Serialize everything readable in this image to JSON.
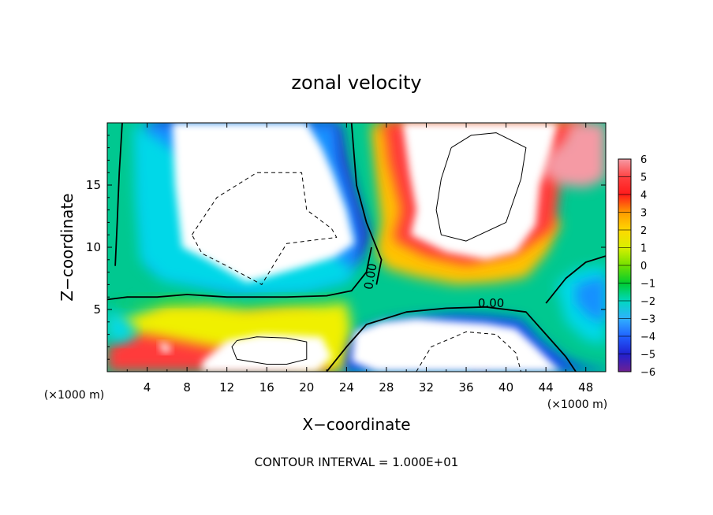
{
  "chart_data": {
    "type": "heatmap",
    "title": "zonal velocity",
    "xlabel": "X−coordinate",
    "ylabel": "Z−coordinate",
    "x_unit": "(×1000 m)",
    "x_unit_right": "(×1000 m)",
    "xlim": [
      0,
      50
    ],
    "ylim": [
      0,
      20
    ],
    "x_ticks": [
      4,
      8,
      12,
      16,
      20,
      24,
      28,
      32,
      36,
      40,
      44,
      48
    ],
    "y_ticks": [
      5,
      10,
      15
    ],
    "footer": "CONTOUR INTERVAL = 1.000E+01",
    "colorbar": {
      "levels": [
        "6",
        "5",
        "4",
        "3",
        "2",
        "1",
        "0",
        "−1",
        "−2",
        "−3",
        "−4",
        "−5",
        "−6"
      ],
      "colors": [
        "#f59aa4",
        "#ff4040",
        "#ff1a1a",
        "#ff9a00",
        "#ffd800",
        "#d8f000",
        "#70e000",
        "#00cc30",
        "#00d8c0",
        "#30b0ff",
        "#2060ff",
        "#2020d0",
        "#702090"
      ],
      "fill_colors": [
        "#f59aa4",
        "#ff3a3a",
        "#ff8a00",
        "#ffc400",
        "#f0f000",
        "#a8e800",
        "#30d020",
        "#00c890",
        "#00d8e8",
        "#1890ff",
        "#1040f0",
        "#2818c0",
        "#6a1aa0"
      ]
    },
    "contour_labels": [
      {
        "text": "0.00",
        "x": 26.8,
        "y": 7.6
      },
      {
        "text": "0.00",
        "x": 38.5,
        "y": 5.2
      }
    ],
    "zero_contour_sections": [
      [
        [
          1.5,
          20
        ],
        [
          1.2,
          16
        ],
        [
          1.0,
          12
        ],
        [
          0.8,
          8.5
        ]
      ],
      [
        [
          0,
          5.8
        ],
        [
          2,
          6.0
        ],
        [
          5,
          6.0
        ],
        [
          8,
          6.2
        ],
        [
          12,
          6.0
        ],
        [
          18,
          6.0
        ],
        [
          22,
          6.1
        ],
        [
          24.5,
          6.5
        ],
        [
          26,
          8
        ],
        [
          26.5,
          10
        ]
      ],
      [
        [
          22,
          0
        ],
        [
          24,
          2
        ],
        [
          26,
          3.8
        ],
        [
          30,
          4.8
        ],
        [
          34,
          5.1
        ],
        [
          38,
          5.2
        ],
        [
          42,
          4.8
        ],
        [
          44,
          3.0
        ],
        [
          46,
          1.2
        ],
        [
          47,
          0
        ]
      ],
      [
        [
          24.5,
          20
        ],
        [
          25,
          15
        ],
        [
          26,
          12
        ],
        [
          27.5,
          9
        ],
        [
          27,
          7
        ]
      ],
      [
        [
          44,
          5.5
        ],
        [
          46,
          7.5
        ],
        [
          48,
          8.8
        ],
        [
          50,
          9.3
        ]
      ]
    ],
    "positive_contour_sections": [
      [
        [
          34.5,
          18
        ],
        [
          36.5,
          19
        ],
        [
          39,
          19.2
        ],
        [
          42,
          18
        ],
        [
          41.5,
          15.5
        ],
        [
          40,
          12
        ],
        [
          36,
          10.5
        ],
        [
          33.5,
          11
        ],
        [
          33,
          13
        ],
        [
          33.5,
          15.5
        ],
        [
          34.5,
          18
        ]
      ],
      [
        [
          13,
          2.5
        ],
        [
          15,
          2.8
        ],
        [
          18,
          2.7
        ],
        [
          20,
          2.4
        ],
        [
          20,
          1.0
        ],
        [
          18,
          0.6
        ],
        [
          16,
          0.6
        ],
        [
          13,
          1.0
        ],
        [
          12.5,
          2.0
        ],
        [
          13,
          2.5
        ]
      ]
    ],
    "negative_contour_sections": [
      [
        [
          8.5,
          11
        ],
        [
          11,
          14
        ],
        [
          15,
          16
        ],
        [
          19.5,
          16
        ],
        [
          20,
          13
        ],
        [
          22.5,
          11.5
        ],
        [
          23,
          10.8
        ],
        [
          18,
          10.3
        ],
        [
          17,
          9
        ],
        [
          15.5,
          7
        ],
        [
          12,
          8.5
        ],
        [
          9.5,
          9.5
        ],
        [
          8.5,
          11
        ]
      ],
      [
        [
          31,
          0
        ],
        [
          32.5,
          2
        ],
        [
          36,
          3.2
        ],
        [
          39,
          3
        ],
        [
          41,
          1.5
        ],
        [
          41.5,
          0
        ]
      ]
    ],
    "regions": [
      {
        "level": -6,
        "pts": [
          [
            5.5,
            16.5
          ],
          [
            6.5,
            18
          ],
          [
            6.3,
            20
          ],
          [
            7.2,
            20
          ],
          [
            6.8,
            17
          ],
          [
            6.5,
            15
          ],
          [
            5.5,
            16.5
          ]
        ]
      },
      {
        "level": -5,
        "pts": [
          [
            4.5,
            20
          ],
          [
            4.8,
            13
          ],
          [
            5.3,
            9
          ],
          [
            6.8,
            8.5
          ],
          [
            9.5,
            8
          ],
          [
            13.5,
            6.8
          ],
          [
            16.5,
            7.3
          ],
          [
            20,
            7.6
          ],
          [
            23.5,
            8.5
          ],
          [
            25.5,
            9.3
          ],
          [
            26.3,
            11
          ],
          [
            25,
            14
          ],
          [
            24,
            17
          ],
          [
            23.3,
            20
          ],
          [
            17,
            20
          ],
          [
            12,
            20
          ],
          [
            8,
            20
          ],
          [
            4.5,
            20
          ]
        ]
      },
      {
        "level": -3,
        "pts": [
          [
            3.6,
            20
          ],
          [
            3.8,
            13
          ],
          [
            4.3,
            8.5
          ],
          [
            6.5,
            7.8
          ],
          [
            9.5,
            7.2
          ],
          [
            13.5,
            6.5
          ],
          [
            16.5,
            6.7
          ],
          [
            20,
            6.9
          ],
          [
            23.8,
            7.6
          ],
          [
            25.2,
            8.8
          ],
          [
            25.5,
            11
          ],
          [
            24.5,
            14
          ],
          [
            23.4,
            17
          ],
          [
            23,
            20
          ]
        ]
      },
      {
        "level": -2,
        "pts": [
          [
            2.6,
            20
          ],
          [
            2.8,
            14
          ],
          [
            3.3,
            9
          ],
          [
            5.5,
            7.3
          ],
          [
            9.5,
            6.8
          ],
          [
            13.5,
            6.2
          ],
          [
            16.5,
            6.2
          ],
          [
            20,
            6.4
          ],
          [
            24.2,
            7.2
          ],
          [
            24.8,
            8.2
          ]
        ]
      },
      {
        "level": -4,
        "pts": [
          [
            23,
            0
          ],
          [
            23.3,
            2.3
          ],
          [
            25.5,
            3.4
          ],
          [
            28.5,
            4.1
          ],
          [
            31.5,
            4.4
          ],
          [
            35,
            4.6
          ],
          [
            38,
            4.5
          ],
          [
            41.5,
            4.2
          ],
          [
            43.5,
            2.5
          ],
          [
            46,
            1.0
          ],
          [
            48,
            0.4
          ],
          [
            50,
            0.2
          ],
          [
            50,
            0
          ]
        ]
      },
      {
        "level": -2,
        "pts": [
          [
            45,
            7
          ],
          [
            47,
            8.2
          ],
          [
            50,
            8.6
          ],
          [
            50,
            2.2
          ],
          [
            48,
            2.5
          ],
          [
            46,
            4
          ],
          [
            45,
            7
          ]
        ]
      },
      {
        "level": -3,
        "pts": [
          [
            47,
            7
          ],
          [
            49,
            7.5
          ],
          [
            50,
            7.6
          ],
          [
            50,
            4
          ],
          [
            48.5,
            4.3
          ],
          [
            47,
            5.5
          ],
          [
            47,
            7
          ]
        ]
      },
      {
        "level": 4,
        "pts": [
          [
            27,
            20
          ],
          [
            27.5,
            16
          ],
          [
            28.5,
            12
          ],
          [
            27.8,
            9.8
          ],
          [
            29,
            9.3
          ],
          [
            33,
            8.6
          ],
          [
            37,
            7.9
          ],
          [
            41.5,
            8.4
          ],
          [
            44,
            10.5
          ],
          [
            44.5,
            15
          ],
          [
            45.5,
            17.5
          ],
          [
            47.5,
            20
          ]
        ]
      },
      {
        "level": 3,
        "pts": [
          [
            26.5,
            20
          ],
          [
            27,
            16
          ],
          [
            27.5,
            12
          ],
          [
            27,
            9.5
          ],
          [
            28,
            8.3
          ],
          [
            31,
            7.6
          ],
          [
            35,
            7.0
          ],
          [
            39,
            7.2
          ],
          [
            42,
            7.6
          ],
          [
            44,
            9.5
          ],
          [
            45.5,
            12
          ]
        ]
      },
      {
        "level": 5,
        "pts": [
          [
            27.8,
            20
          ],
          [
            28.2,
            17
          ],
          [
            29.5,
            13
          ],
          [
            28.7,
            10.6
          ],
          [
            32,
            9.3
          ],
          [
            36,
            8.6
          ],
          [
            41,
            9.4
          ],
          [
            44.8,
            11.5
          ],
          [
            45.5,
            16
          ],
          [
            47,
            18.5
          ],
          [
            48,
            20
          ]
        ]
      },
      {
        "level": 6,
        "pts": [
          [
            43.5,
            16
          ],
          [
            44.2,
            17.5
          ],
          [
            45.8,
            18.5
          ],
          [
            46.5,
            20
          ],
          [
            50,
            20
          ],
          [
            50,
            15.5
          ],
          [
            48,
            14.8
          ],
          [
            45.5,
            15
          ],
          [
            43.5,
            16
          ]
        ]
      },
      {
        "level": 5,
        "pts": [
          [
            0,
            2.0
          ],
          [
            2.5,
            3.0
          ],
          [
            5.5,
            4.5
          ],
          [
            9,
            4.5
          ],
          [
            12,
            4.2
          ],
          [
            16,
            4.6
          ],
          [
            20,
            4.6
          ],
          [
            22.5,
            3.2
          ],
          [
            23,
            0
          ],
          [
            0,
            0
          ]
        ]
      },
      {
        "level": 2,
        "pts": [
          [
            0,
            3.6
          ],
          [
            3,
            4.6
          ],
          [
            6,
            5.4
          ],
          [
            10,
            5.4
          ],
          [
            14,
            5.0
          ],
          [
            18,
            5.3
          ],
          [
            22,
            5.4
          ],
          [
            24,
            5.6
          ],
          [
            24.5,
            3.5
          ],
          [
            23.5,
            0
          ]
        ]
      },
      {
        "level": 0,
        "pts": [
          [
            0,
            5.3
          ],
          [
            3,
            5.7
          ],
          [
            7,
            6.0
          ],
          [
            10,
            5.8
          ],
          [
            14,
            5.6
          ],
          [
            18,
            5.7
          ],
          [
            22,
            5.9
          ],
          [
            24.3,
            6.2
          ]
        ]
      },
      {
        "level": -1,
        "pts": [
          [
            0,
            20
          ],
          [
            0.8,
            18
          ],
          [
            1.4,
            14
          ],
          [
            1.8,
            10
          ],
          [
            2.2,
            8
          ],
          [
            1,
            7.6
          ],
          [
            0,
            7.2
          ]
        ]
      },
      {
        "level": -2,
        "pts": [
          [
            0,
            5.0
          ],
          [
            1.5,
            4.5
          ],
          [
            3,
            3.2
          ],
          [
            2,
            2.4
          ],
          [
            0,
            2.5
          ]
        ]
      },
      {
        "level": -6,
        "pts": [
          [
            36.8,
            0
          ],
          [
            37,
            0.4
          ],
          [
            37.9,
            0.5
          ],
          [
            38.2,
            0
          ]
        ]
      }
    ],
    "white_regions": [
      [
        [
          6.5,
          20
        ],
        [
          6.8,
          15
        ],
        [
          7.5,
          10
        ],
        [
          10,
          9.0
        ],
        [
          14,
          7.2
        ],
        [
          16,
          7.6
        ],
        [
          19.5,
          8.4
        ],
        [
          22.8,
          9.2
        ],
        [
          24.8,
          10.3
        ],
        [
          24,
          13
        ],
        [
          22.6,
          16
        ],
        [
          21.5,
          18
        ],
        [
          20,
          20
        ]
      ],
      [
        [
          29.6,
          20
        ],
        [
          30.3,
          16
        ],
        [
          31,
          13
        ],
        [
          30.4,
          11
        ],
        [
          34,
          9.6
        ],
        [
          38,
          9.0
        ],
        [
          41,
          9.6
        ],
        [
          43,
          11.8
        ],
        [
          43.4,
          15
        ],
        [
          44.5,
          17.8
        ],
        [
          45.2,
          20
        ]
      ],
      [
        [
          24.8,
          3.2
        ],
        [
          27.5,
          4.0
        ],
        [
          31,
          4.3
        ],
        [
          34,
          4.1
        ],
        [
          38,
          3.9
        ],
        [
          41,
          3.5
        ],
        [
          43,
          2.0
        ],
        [
          44.5,
          0.8
        ],
        [
          45.5,
          0
        ],
        [
          31,
          0
        ],
        [
          27,
          0
        ],
        [
          24.5,
          0.8
        ]
      ],
      [
        [
          9.5,
          0.8
        ],
        [
          12,
          2.5
        ],
        [
          15.5,
          3.0
        ],
        [
          19,
          2.9
        ],
        [
          21.5,
          2.8
        ],
        [
          22.5,
          1.2
        ],
        [
          21,
          0
        ],
        [
          9.5,
          0
        ]
      ],
      [
        [
          5.2,
          2.4
        ],
        [
          6,
          2.2
        ],
        [
          6.5,
          1.7
        ],
        [
          5.6,
          1.5
        ]
      ]
    ]
  }
}
